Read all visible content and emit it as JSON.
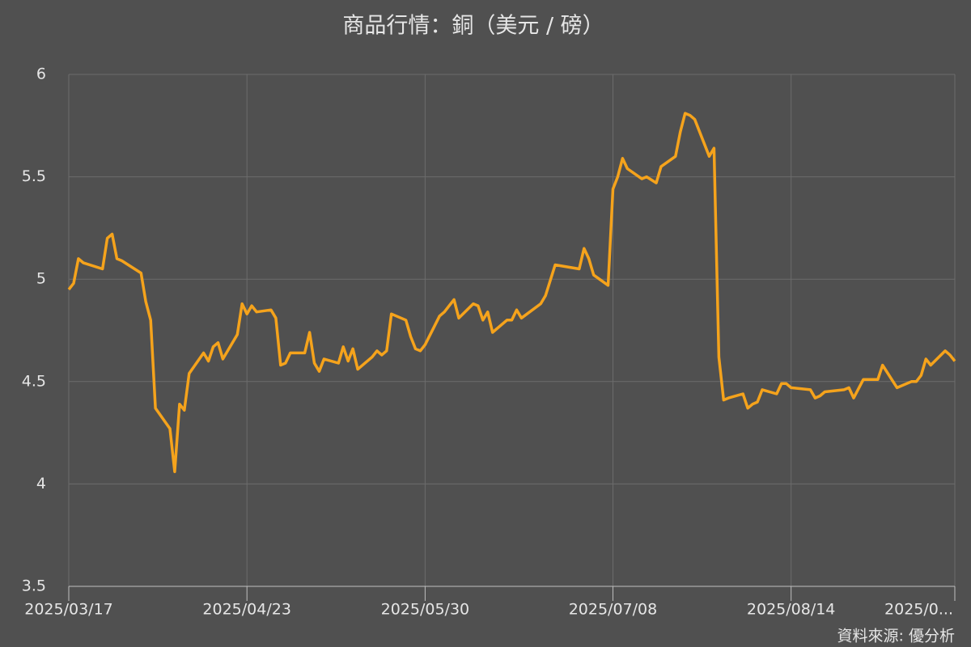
{
  "chart_data": {
    "type": "line",
    "title": "商品行情：銅（美元 / 磅）",
    "source": "資料來源: 優分析",
    "x": [
      "2025/03/17",
      "2025/03/18",
      "2025/03/19",
      "2025/03/20",
      "2025/03/24",
      "2025/03/25",
      "2025/03/26",
      "2025/03/27",
      "2025/03/28",
      "2025/04/01",
      "2025/04/02",
      "2025/04/03",
      "2025/04/04",
      "2025/04/07",
      "2025/04/08",
      "2025/04/09",
      "2025/04/10",
      "2025/04/11",
      "2025/04/14",
      "2025/04/15",
      "2025/04/16",
      "2025/04/17",
      "2025/04/18",
      "2025/04/21",
      "2025/04/22",
      "2025/04/23",
      "2025/04/24",
      "2025/04/25",
      "2025/04/28",
      "2025/04/29",
      "2025/04/30",
      "2025/05/01",
      "2025/05/02",
      "2025/05/05",
      "2025/05/06",
      "2025/05/07",
      "2025/05/08",
      "2025/05/09",
      "2025/05/12",
      "2025/05/13",
      "2025/05/14",
      "2025/05/15",
      "2025/05/16",
      "2025/05/19",
      "2025/05/20",
      "2025/05/21",
      "2025/05/22",
      "2025/05/23",
      "2025/05/26",
      "2025/05/27",
      "2025/05/28",
      "2025/05/29",
      "2025/05/30",
      "2025/06/02",
      "2025/06/03",
      "2025/06/04",
      "2025/06/05",
      "2025/06/06",
      "2025/06/09",
      "2025/06/10",
      "2025/06/11",
      "2025/06/12",
      "2025/06/13",
      "2025/06/16",
      "2025/06/17",
      "2025/06/18",
      "2025/06/19",
      "2025/06/23",
      "2025/06/24",
      "2025/06/26",
      "2025/07/01",
      "2025/07/02",
      "2025/07/03",
      "2025/07/04",
      "2025/07/07",
      "2025/07/08",
      "2025/07/09",
      "2025/07/10",
      "2025/07/11",
      "2025/07/14",
      "2025/07/15",
      "2025/07/17",
      "2025/07/18",
      "2025/07/21",
      "2025/07/22",
      "2025/07/23",
      "2025/07/24",
      "2025/07/25",
      "2025/07/28",
      "2025/07/29",
      "2025/07/30",
      "2025/07/31",
      "2025/08/01",
      "2025/08/04",
      "2025/08/05",
      "2025/08/06",
      "2025/08/07",
      "2025/08/08",
      "2025/08/11",
      "2025/08/12",
      "2025/08/13",
      "2025/08/14",
      "2025/08/18",
      "2025/08/19",
      "2025/08/20",
      "2025/08/21",
      "2025/08/25",
      "2025/08/26",
      "2025/08/27",
      "2025/08/29",
      "2025/09/01",
      "2025/09/02",
      "2025/09/05",
      "2025/09/08",
      "2025/09/09",
      "2025/09/10",
      "2025/09/11",
      "2025/09/12",
      "2025/09/15",
      "2025/09/16",
      "2025/09/17"
    ],
    "values": [
      4.95,
      4.98,
      5.1,
      5.08,
      5.05,
      5.2,
      5.22,
      5.1,
      5.09,
      5.03,
      4.89,
      4.8,
      4.37,
      4.27,
      4.06,
      4.39,
      4.36,
      4.54,
      4.64,
      4.6,
      4.67,
      4.69,
      4.61,
      4.73,
      4.88,
      4.83,
      4.87,
      4.84,
      4.85,
      4.81,
      4.58,
      4.59,
      4.64,
      4.64,
      4.74,
      4.59,
      4.55,
      4.61,
      4.59,
      4.67,
      4.6,
      4.66,
      4.56,
      4.62,
      4.65,
      4.63,
      4.65,
      4.83,
      4.8,
      4.72,
      4.66,
      4.65,
      4.68,
      4.82,
      4.84,
      4.87,
      4.9,
      4.81,
      4.88,
      4.87,
      4.8,
      4.84,
      4.74,
      4.8,
      4.8,
      4.85,
      4.81,
      4.88,
      4.92,
      5.07,
      5.05,
      5.15,
      5.1,
      5.02,
      4.97,
      5.44,
      5.5,
      5.59,
      5.54,
      5.49,
      5.5,
      5.47,
      5.55,
      5.6,
      5.72,
      5.81,
      5.8,
      5.78,
      5.6,
      5.64,
      4.62,
      4.41,
      4.42,
      4.44,
      4.37,
      4.39,
      4.4,
      4.46,
      4.44,
      4.49,
      4.49,
      4.47,
      4.46,
      4.42,
      4.43,
      4.45,
      4.46,
      4.47,
      4.42,
      4.51,
      4.51,
      4.58,
      4.47,
      4.5,
      4.5,
      4.53,
      4.61,
      4.58,
      4.65,
      4.63,
      4.6
    ],
    "color": "#f5a31c",
    "xlim": [
      "2025/03/17",
      "2025/09/17"
    ],
    "xticks": [
      "2025/03/17",
      "2025/04/23",
      "2025/05/30",
      "2025/07/08",
      "2025/08/14",
      {
        "value": "2025/09/17",
        "label": "2025/0..."
      }
    ],
    "ylim": [
      3.5,
      6
    ],
    "yticks": [
      3.5,
      4,
      4.5,
      5,
      5.5,
      6
    ],
    "grid": true
  }
}
